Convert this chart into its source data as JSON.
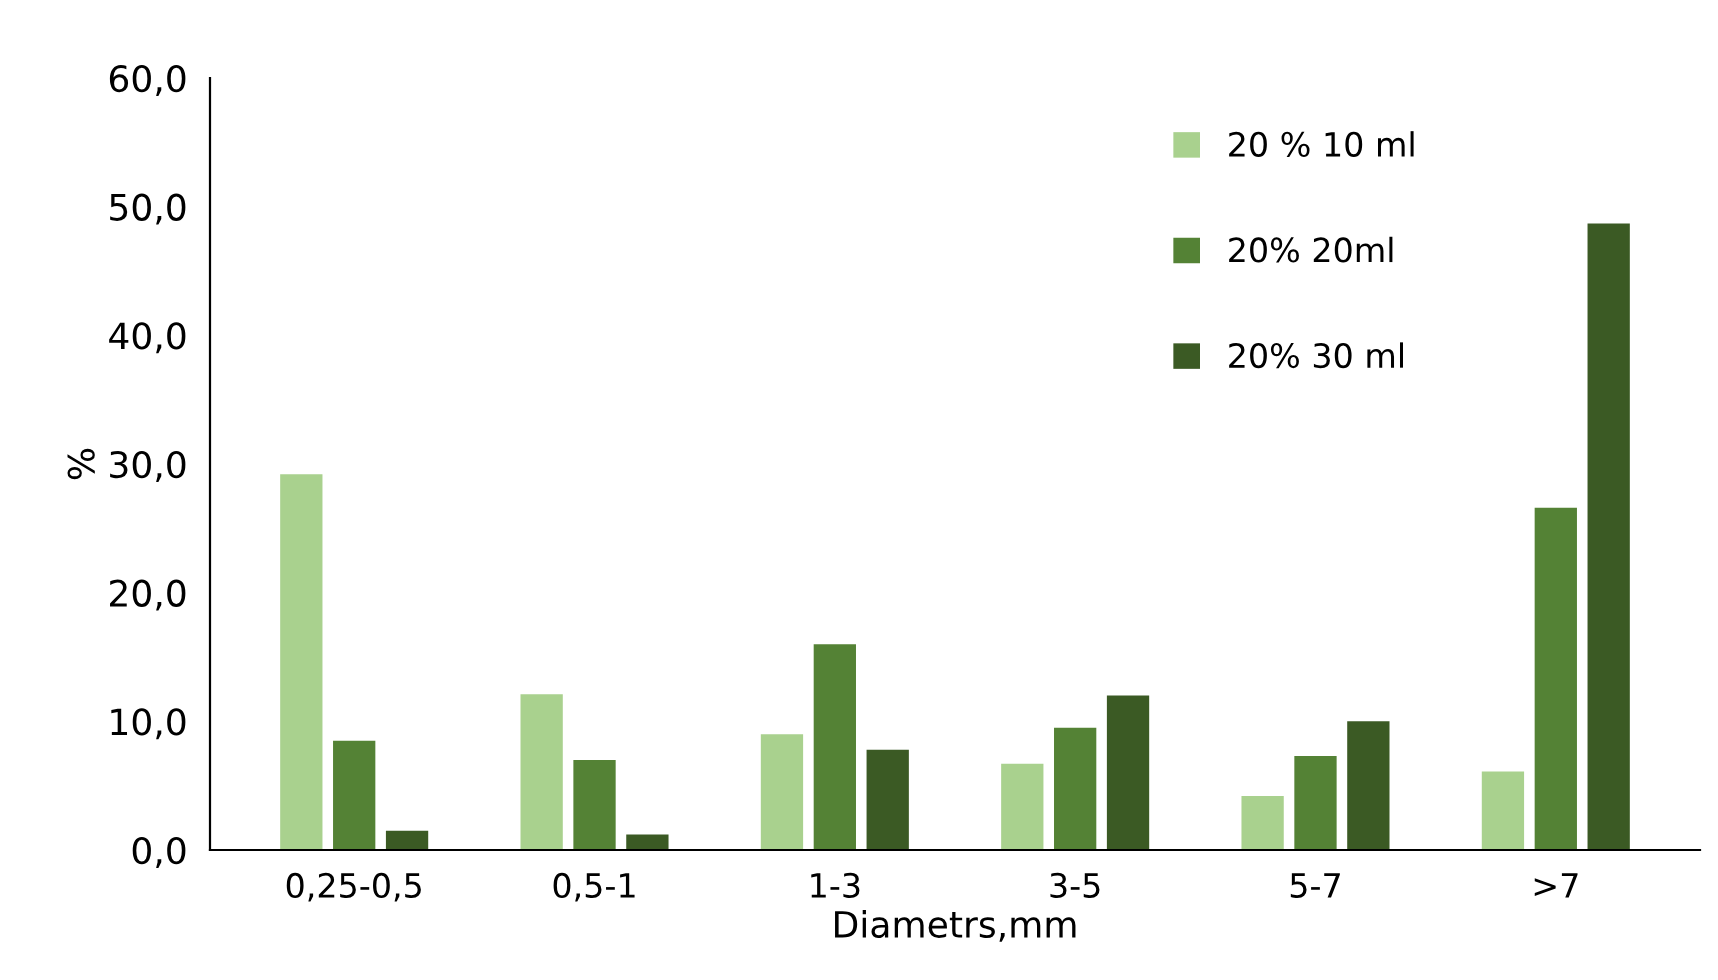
{
  "chart_data": {
    "type": "bar",
    "xlabel": "Diametrs,mm",
    "ylabel": "%",
    "categories": [
      "0,25-0,5",
      "0,5-1",
      "1-3",
      "3-5",
      "5-7",
      ">7"
    ],
    "series": [
      {
        "name": "20 % 10 ml",
        "color": "#a9d18e",
        "values": [
          29.2,
          12.1,
          9.0,
          6.7,
          4.2,
          6.1
        ]
      },
      {
        "name": "20% 20ml",
        "color": "#548235",
        "values": [
          8.5,
          7.0,
          16.0,
          9.5,
          7.3,
          26.6
        ]
      },
      {
        "name": "20% 30 ml",
        "color": "#3b5a24",
        "values": [
          1.5,
          1.2,
          7.8,
          12.0,
          10.0,
          48.7
        ]
      }
    ],
    "ylim": [
      0,
      60
    ],
    "yticks": [
      {
        "value": 0,
        "label": "0,0"
      },
      {
        "value": 10,
        "label": "10,0"
      },
      {
        "value": 20,
        "label": "20,0"
      },
      {
        "value": 30,
        "label": "30,0"
      },
      {
        "value": 40,
        "label": "40,0"
      },
      {
        "value": 50,
        "label": "50,0"
      },
      {
        "value": 60,
        "label": "60,0"
      }
    ],
    "grid": false,
    "legend": "top right"
  }
}
